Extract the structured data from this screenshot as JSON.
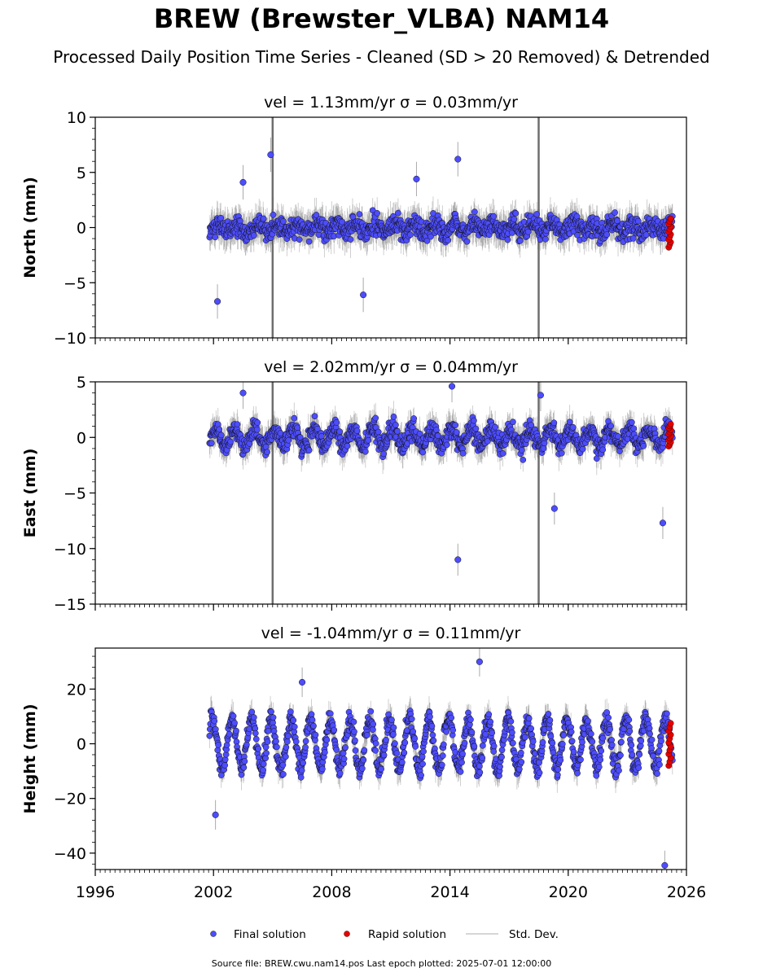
{
  "title": "BREW (Brewster_VLBA) NAM14",
  "subtitle": "Processed Daily Position Time Series - Cleaned (SD > 20 Removed) & Detrended",
  "footer": "Source file: BREW.cwu.nam14.pos  Last epoch plotted: 2025-07-01 12:00:00",
  "colors": {
    "final": "#4d4dff",
    "rapid": "#e60000",
    "stddev": "#c8c8c8"
  },
  "legend": {
    "final_label": "Final solution",
    "rapid_label": "Rapid solution",
    "stddev_label": "Std. Dev."
  },
  "chart_data": [
    {
      "type": "scatter",
      "title": "vel = 1.13mm/yr   σ = 0.03mm/yr",
      "ylabel": "North (mm)",
      "xlim": [
        1996,
        2026
      ],
      "ylim": [
        -10,
        10
      ],
      "yticks": [
        -10,
        -5,
        0,
        5,
        10
      ],
      "xticks": [
        1996,
        2002,
        2008,
        2014,
        2020,
        2026
      ],
      "show_xtick_labels": false,
      "start": 2001.8,
      "end": 2025.3,
      "seasonal_amp": 0.4,
      "noise": 1.2,
      "err": 1.3,
      "rapid_range": [
        -1.8,
        0.8
      ],
      "gap_lines": [
        2005.0,
        2018.5
      ],
      "outliers": [
        [
          2002.2,
          -6.7
        ],
        [
          2004.9,
          6.6
        ],
        [
          2014.4,
          6.2
        ],
        [
          2009.6,
          -6.1
        ],
        [
          2003.5,
          4.1
        ],
        [
          2012.3,
          4.4
        ]
      ]
    },
    {
      "type": "scatter",
      "title": "vel = 2.02mm/yr   σ = 0.04mm/yr",
      "ylabel": "East (mm)",
      "xlim": [
        1996,
        2026
      ],
      "ylim": [
        -15,
        5
      ],
      "yticks": [
        -15,
        -10,
        -5,
        0,
        5
      ],
      "xticks": [
        1996,
        2002,
        2008,
        2014,
        2020,
        2026
      ],
      "show_xtick_labels": false,
      "start": 2001.8,
      "end": 2025.3,
      "seasonal_amp": 0.8,
      "noise": 1.1,
      "err": 1.2,
      "rapid_range": [
        -0.8,
        1.2
      ],
      "gap_lines": [
        2005.0,
        2018.5
      ],
      "outliers": [
        [
          2014.4,
          -11.0
        ],
        [
          2024.8,
          -7.7
        ],
        [
          2019.3,
          -6.4
        ],
        [
          2014.1,
          4.6
        ],
        [
          2003.5,
          4.0
        ],
        [
          2018.6,
          3.8
        ]
      ]
    },
    {
      "type": "scatter",
      "title": "vel = -1.04mm/yr   σ = 0.11mm/yr",
      "ylabel": "Height (mm)",
      "xlim": [
        1996,
        2026
      ],
      "ylim": [
        -46,
        35
      ],
      "yticks": [
        -40,
        -20,
        0,
        20
      ],
      "xticks": [
        1996,
        2002,
        2008,
        2014,
        2020,
        2026
      ],
      "show_xtick_labels": true,
      "start": 2001.8,
      "end": 2025.3,
      "seasonal_amp": 9,
      "noise": 4.5,
      "err": 4.5,
      "rapid_range": [
        -8,
        7.5
      ],
      "gap_lines": [],
      "outliers": [
        [
          2015.5,
          30.0
        ],
        [
          2024.9,
          -44.5
        ],
        [
          2002.1,
          -26.0
        ],
        [
          2006.5,
          22.5
        ]
      ]
    }
  ]
}
